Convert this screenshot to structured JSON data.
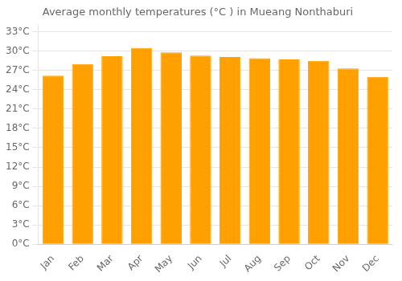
{
  "chart_data": {
    "type": "bar",
    "title": "Average monthly temperatures (°C ) in Mueang Nonthaburi",
    "categories": [
      "Jan",
      "Feb",
      "Mar",
      "Apr",
      "May",
      "Jun",
      "Jul",
      "Aug",
      "Sep",
      "Oct",
      "Nov",
      "Dec"
    ],
    "values": [
      26.2,
      28.0,
      29.2,
      30.5,
      29.8,
      29.3,
      29.1,
      28.9,
      28.7,
      28.5,
      27.3,
      26.0
    ],
    "color": "#FFA000",
    "ylim": [
      0,
      34
    ],
    "yticks": [
      {
        "value": 0,
        "label": "0°C"
      },
      {
        "value": 3,
        "label": "3°C"
      },
      {
        "value": 6,
        "label": "6°C"
      },
      {
        "value": 9,
        "label": "9°C"
      },
      {
        "value": 12,
        "label": "12°C"
      },
      {
        "value": 15,
        "label": "15°C"
      },
      {
        "value": 18,
        "label": "18°C"
      },
      {
        "value": 21,
        "label": "21°C"
      },
      {
        "value": 24,
        "label": "24°C"
      },
      {
        "value": 27,
        "label": "27°C"
      },
      {
        "value": 30,
        "label": "30°C"
      },
      {
        "value": 33,
        "label": "33°C"
      }
    ],
    "grid": true
  }
}
